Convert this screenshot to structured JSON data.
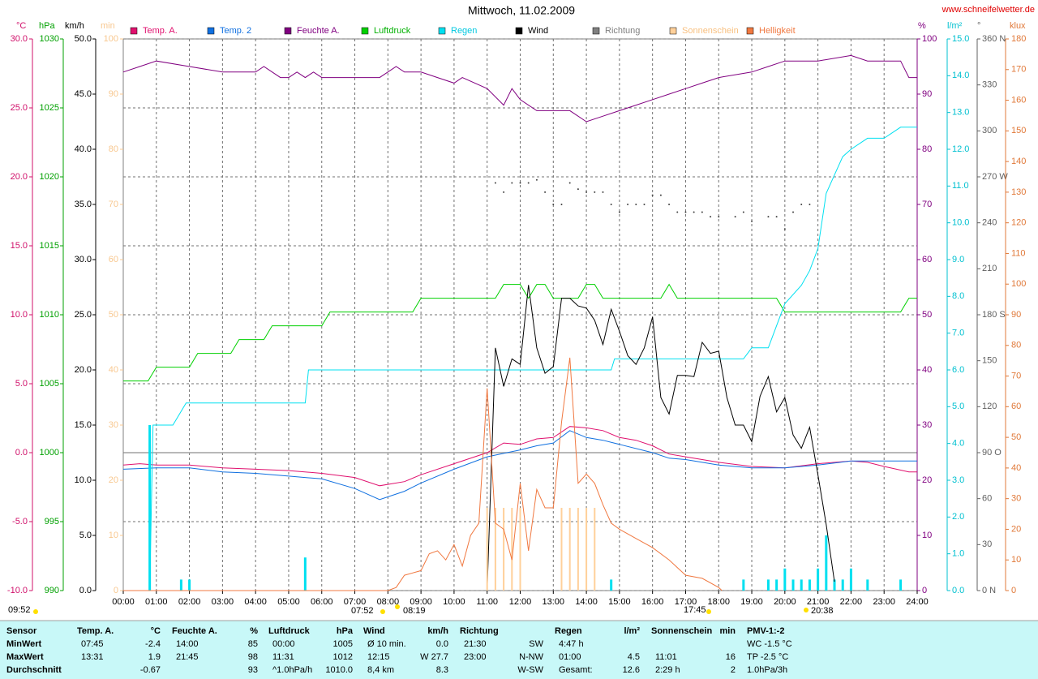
{
  "chart_data": {
    "type": "line",
    "title": "Mittwoch, 11.02.2009",
    "source": "www.schneifelwetter.de",
    "xlim": [
      0,
      24
    ],
    "xticks": [
      {
        "value": 0,
        "label": "00:00"
      },
      {
        "value": 1,
        "label": "01:00"
      },
      {
        "value": 2,
        "label": "02:00"
      },
      {
        "value": 3,
        "label": "03:00"
      },
      {
        "value": 4,
        "label": "04:00"
      },
      {
        "value": 5,
        "label": "05:00"
      },
      {
        "value": 6,
        "label": "06:00"
      },
      {
        "value": 7,
        "label": "07:00"
      },
      {
        "value": 8,
        "label": "08:00"
      },
      {
        "value": 9,
        "label": "09:00"
      },
      {
        "value": 10,
        "label": "10:00"
      },
      {
        "value": 11,
        "label": "11:00"
      },
      {
        "value": 12,
        "label": "12:00"
      },
      {
        "value": 13,
        "label": "13:00"
      },
      {
        "value": 14,
        "label": "14:00"
      },
      {
        "value": 15,
        "label": "15:00"
      },
      {
        "value": 16,
        "label": "16:00"
      },
      {
        "value": 17,
        "label": "17:00"
      },
      {
        "value": 18,
        "label": "18:00"
      },
      {
        "value": 19,
        "label": "19:00"
      },
      {
        "value": 20,
        "label": "20:00"
      },
      {
        "value": 21,
        "label": "21:00"
      },
      {
        "value": 22,
        "label": "22:00"
      },
      {
        "value": 23,
        "label": "23:00"
      },
      {
        "value": 24,
        "label": "24:00"
      }
    ],
    "grid": true,
    "grid_axis": 0,
    "axes": [
      {
        "label": "°C",
        "color": "#d0106a",
        "lim": [
          -10,
          30
        ],
        "baseline": 0,
        "ticks": [
          {
            "value": -10,
            "label": "-10.0"
          },
          {
            "value": -5,
            "label": "-5.0"
          },
          {
            "value": 0,
            "label": "0.0"
          },
          {
            "value": 5,
            "label": "5.0"
          },
          {
            "value": 10,
            "label": "10.0"
          },
          {
            "value": 15,
            "label": "15.0"
          },
          {
            "value": 20,
            "label": "20.0"
          },
          {
            "value": 25,
            "label": "25.0"
          },
          {
            "value": 30,
            "label": "30.0"
          }
        ]
      },
      {
        "label": "hPa",
        "color": "#00a000",
        "lim": [
          990,
          1030
        ],
        "ticks": [
          990,
          995,
          1000,
          1005,
          1010,
          1015,
          1020,
          1025,
          1030
        ]
      },
      {
        "label": "km/h",
        "color": "#000000",
        "lim": [
          0,
          50
        ],
        "ticks": [
          {
            "value": 0,
            "label": "0.0"
          },
          {
            "value": 5,
            "label": "5.0"
          },
          {
            "value": 10,
            "label": "10.0"
          },
          {
            "value": 15,
            "label": "15.0"
          },
          {
            "value": 20,
            "label": "20.0"
          },
          {
            "value": 25,
            "label": "25.0"
          },
          {
            "value": 30,
            "label": "30.0"
          },
          {
            "value": 35,
            "label": "35.0"
          },
          {
            "value": 40,
            "label": "40.0"
          },
          {
            "value": 45,
            "label": "45.0"
          },
          {
            "value": 50,
            "label": "50.0"
          }
        ]
      },
      {
        "label": "min",
        "color": "#f8c890",
        "lim": [
          0,
          100
        ],
        "ticks": [
          0,
          10,
          20,
          30,
          40,
          50,
          60,
          70,
          80,
          90,
          100
        ]
      },
      {
        "label": "%",
        "color": "#800080",
        "lim": [
          0,
          100
        ],
        "ticks": [
          0,
          10,
          20,
          30,
          40,
          50,
          60,
          70,
          80,
          90,
          100
        ]
      },
      {
        "label": "l/m²",
        "color": "#00c0d0",
        "lim": [
          0,
          15
        ],
        "ticks": [
          {
            "value": 0,
            "label": "0.0"
          },
          {
            "value": 1,
            "label": "1.0"
          },
          {
            "value": 2,
            "label": "2.0"
          },
          {
            "value": 3,
            "label": "3.0"
          },
          {
            "value": 4,
            "label": "4.0"
          },
          {
            "value": 5,
            "label": "5.0"
          },
          {
            "value": 6,
            "label": "6.0"
          },
          {
            "value": 7,
            "label": "7.0"
          },
          {
            "value": 8,
            "label": "8.0"
          },
          {
            "value": 9,
            "label": "9.0"
          },
          {
            "value": 10,
            "label": "10.0"
          },
          {
            "value": 11,
            "label": "11.0"
          },
          {
            "value": 12,
            "label": "12.0"
          },
          {
            "value": 13,
            "label": "13.0"
          },
          {
            "value": 14,
            "label": "14.0"
          },
          {
            "value": 15,
            "label": "15.0"
          }
        ]
      },
      {
        "label": "°",
        "color": "#606060",
        "lim": [
          0,
          360
        ],
        "ticks": [
          {
            "value": 0,
            "label": "0  N"
          },
          30,
          60,
          {
            "value": 90,
            "label": "90  O"
          },
          120,
          150,
          {
            "value": 180,
            "label": "180 S"
          },
          210,
          240,
          {
            "value": 270,
            "label": "270 W"
          },
          300,
          330,
          {
            "value": 360,
            "label": "360 N"
          }
        ]
      },
      {
        "label": "klux",
        "color": "#e07838",
        "lim": [
          0,
          180
        ],
        "ticks": [
          0,
          10,
          20,
          30,
          40,
          50,
          60,
          70,
          80,
          90,
          100,
          110,
          120,
          130,
          140,
          150,
          160,
          170,
          180
        ]
      }
    ],
    "series": [
      {
        "name": "Temp. A.",
        "color": "#e0106e",
        "axis": 0,
        "mark": "line",
        "x": [
          0,
          0.5,
          1,
          2,
          3,
          4,
          5,
          6,
          7,
          7.75,
          8.5,
          9,
          10,
          11,
          11.5,
          12,
          12.5,
          13,
          13.5,
          14,
          14.5,
          15,
          15.5,
          16,
          16.5,
          17,
          18,
          19,
          20,
          21,
          22,
          22.5,
          23,
          23.75,
          24
        ],
        "values": [
          -0.9,
          -0.8,
          -0.9,
          -0.9,
          -1.1,
          -1.2,
          -1.3,
          -1.5,
          -1.8,
          -2.4,
          -2.1,
          -1.6,
          -0.8,
          0,
          0.7,
          0.6,
          1.0,
          1.1,
          1.9,
          1.8,
          1.6,
          1.1,
          0.9,
          0.5,
          -0.1,
          -0.3,
          -0.7,
          -1.0,
          -1.1,
          -0.8,
          -0.6,
          -0.7,
          -1.0,
          -1.4,
          -1.4
        ]
      },
      {
        "name": "Temp. 2",
        "color": "#1070e0",
        "axis": 0,
        "mark": "line",
        "x": [
          0,
          1,
          2,
          3,
          4,
          5,
          6,
          7,
          7.75,
          8.5,
          9,
          10,
          11,
          12,
          12.5,
          13,
          13.5,
          14,
          14.5,
          15,
          16,
          16.5,
          17,
          18,
          19,
          20,
          21,
          22,
          23,
          23.75,
          24
        ],
        "values": [
          -1.2,
          -1.1,
          -1.1,
          -1.4,
          -1.5,
          -1.7,
          -1.9,
          -2.6,
          -3.4,
          -2.8,
          -2.2,
          -1.2,
          -0.3,
          0.2,
          0.5,
          0.7,
          1.6,
          1.1,
          0.9,
          0.6,
          0.0,
          -0.4,
          -0.5,
          -0.9,
          -1.1,
          -1.1,
          -0.9,
          -0.6,
          -0.6,
          -0.6,
          -0.6
        ]
      },
      {
        "name": "Feuchte A.",
        "color": "#800080",
        "axis": 4,
        "mark": "line",
        "x": [
          0,
          0.5,
          1,
          2,
          3,
          4,
          4.25,
          4.75,
          5,
          5.25,
          5.5,
          5.75,
          6,
          7.75,
          8.25,
          8.5,
          9,
          9.5,
          10,
          10.25,
          11,
          11.5,
          11.75,
          12,
          12.5,
          13.5,
          14,
          14.5,
          15,
          15.5,
          16,
          16.5,
          17,
          17.5,
          18,
          19,
          19.5,
          20,
          21,
          22,
          22.5,
          23,
          23.5,
          23.75,
          24
        ],
        "values": [
          94,
          95,
          96,
          95,
          94,
          94,
          95,
          93,
          93,
          94,
          93,
          94,
          93,
          93,
          95,
          94,
          94,
          93,
          92,
          93,
          91,
          88,
          91,
          89,
          87,
          87,
          85,
          86,
          87,
          88,
          89,
          90,
          91,
          92,
          93,
          94,
          95,
          96,
          96,
          97,
          96,
          96,
          96,
          93,
          93
        ]
      },
      {
        "name": "Luftdruck",
        "color": "#00d000",
        "axis": 1,
        "mark": "line",
        "x": [
          0,
          0.75,
          1,
          2,
          2.25,
          3.25,
          3.5,
          4.25,
          4.5,
          6,
          6.25,
          8.75,
          9,
          11.25,
          11.5,
          12,
          12.25,
          12.5,
          12.75,
          13,
          13.75,
          14,
          14.25,
          14.5,
          16.25,
          16.5,
          16.75,
          19.75,
          20,
          23.5,
          23.75,
          24
        ],
        "values": [
          1005.2,
          1005.2,
          1006.2,
          1006.2,
          1007.2,
          1007.2,
          1008.2,
          1008.2,
          1009.2,
          1009.2,
          1010.2,
          1010.2,
          1011.2,
          1011.2,
          1012.2,
          1012.2,
          1011.2,
          1012.2,
          1012.2,
          1011.2,
          1011.2,
          1012.2,
          1012.2,
          1011.2,
          1011.2,
          1012.2,
          1011.2,
          1011.2,
          1010.2,
          1010.2,
          1011.2,
          1011.2
        ]
      },
      {
        "name": "Regen",
        "color": "#00e0f0",
        "axis": 5,
        "mark": "line",
        "x": [
          0,
          0.8,
          0.9,
          1.5,
          1.9,
          5.5,
          5.6,
          14.75,
          14.85,
          18.75,
          19,
          19.5,
          19.75,
          20,
          20.5,
          20.75,
          21,
          21.25,
          21.5,
          21.75,
          22,
          22.5,
          23,
          23.5,
          24
        ],
        "values": [
          0,
          0,
          4.5,
          4.5,
          5.1,
          5.1,
          6.0,
          6.0,
          6.3,
          6.3,
          6.6,
          6.6,
          7.2,
          7.8,
          8.3,
          8.7,
          9.3,
          10.8,
          11.3,
          11.8,
          12.0,
          12.3,
          12.3,
          12.6,
          12.6
        ],
        "bar_x": [
          0.8,
          1.75,
          2.0,
          5.5,
          14.75,
          18.75,
          19.5,
          19.75,
          20.0,
          20.25,
          20.5,
          20.75,
          21.0,
          21.25,
          21.5,
          21.75,
          22.0,
          22.5,
          23.5
        ],
        "bar_values": [
          4.5,
          0.3,
          0.3,
          0.9,
          0.3,
          0.3,
          0.3,
          0.3,
          0.6,
          0.3,
          0.3,
          0.3,
          0.6,
          1.5,
          0.3,
          0.3,
          0.6,
          0.3,
          0.3
        ]
      },
      {
        "name": "Wind",
        "color": "#000000",
        "axis": 2,
        "mark": "line",
        "x": [
          11,
          11.25,
          11.5,
          11.75,
          12,
          12.25,
          12.5,
          12.75,
          13,
          13.25,
          13.5,
          13.75,
          14,
          14.25,
          14.5,
          14.75,
          15,
          15.25,
          15.5,
          15.75,
          16,
          16.25,
          16.5,
          16.75,
          17,
          17.25,
          17.5,
          17.75,
          18,
          18.25,
          18.5,
          18.75,
          19,
          19.25,
          19.5,
          19.75,
          20,
          20.25,
          20.5,
          20.75,
          21,
          21.25,
          21.5
        ],
        "values": [
          0,
          22,
          18.5,
          21,
          20.5,
          27.7,
          22,
          19.7,
          20.3,
          26.5,
          26.5,
          25.8,
          25.6,
          24.5,
          22.3,
          25.5,
          23.5,
          21.3,
          20.5,
          22,
          24.8,
          17.5,
          16,
          19.5,
          19.5,
          19.4,
          22.5,
          21.5,
          21.7,
          17.5,
          15,
          15,
          13.5,
          17.6,
          19.4,
          16.2,
          17.5,
          14.1,
          12.9,
          14.8,
          10.5,
          6,
          0.8
        ]
      },
      {
        "name": "Richtung",
        "color": "#808080",
        "axis": 6,
        "mark": "dots",
        "x": [
          11.25,
          11.5,
          11.75,
          12,
          12.25,
          12.5,
          12.75,
          13,
          13.25,
          13.5,
          13.75,
          14,
          14.25,
          14.5,
          14.75,
          15,
          15.25,
          15.5,
          15.75,
          16,
          16.25,
          16.5,
          16.75,
          17,
          17.25,
          17.5,
          17.75,
          18,
          18.5,
          18.75,
          19,
          19.5,
          19.75,
          20,
          20.25,
          20.5,
          20.75
        ],
        "values": [
          266,
          260,
          266,
          266,
          266,
          268,
          260,
          252,
          252,
          266,
          262,
          260,
          260,
          260,
          252,
          247,
          252,
          252,
          252,
          258,
          258,
          252,
          247,
          247,
          247,
          247,
          244,
          244,
          244,
          247,
          241,
          244,
          244,
          236,
          247,
          252,
          252
        ]
      },
      {
        "name": "Sonnenschein",
        "color": "#ffd09a",
        "axis": 3,
        "mark": "bars",
        "x": [
          11.0,
          11.25,
          11.5,
          11.75,
          12.0,
          13.25,
          13.5,
          13.75,
          14.0,
          14.25
        ],
        "values": [
          15,
          15,
          15,
          15,
          15,
          15,
          15,
          15,
          15,
          15
        ]
      },
      {
        "name": "Helligkeit",
        "color": "#f07840",
        "axis": 7,
        "mark": "line",
        "x": [
          0,
          8,
          8.25,
          8.5,
          9,
          9.25,
          9.5,
          9.75,
          10,
          10.25,
          10.5,
          10.75,
          11,
          11.25,
          11.5,
          11.75,
          12,
          12.25,
          12.5,
          12.75,
          13,
          13.25,
          13.5,
          13.75,
          14,
          14.25,
          14.5,
          14.75,
          15,
          15.5,
          16,
          16.5,
          17,
          17.5,
          18,
          18.1
        ],
        "values": [
          0,
          0,
          1,
          5,
          6.5,
          12,
          13,
          10,
          15,
          8,
          18,
          22,
          66,
          22,
          20,
          10,
          35,
          13,
          33,
          27,
          27,
          55,
          76,
          35,
          38,
          35,
          28,
          22,
          20,
          17,
          14,
          10,
          5,
          4,
          1,
          0
        ]
      }
    ],
    "sun_times": [
      "09:52",
      "07:52",
      "08:19",
      "17:45",
      "20:38"
    ]
  },
  "table": {
    "columns": [
      {
        "name": "Sensor"
      },
      {
        "name": "Temp. A.",
        "unit": "°C"
      },
      {
        "name": "Feuchte A.",
        "unit": "%"
      },
      {
        "name": "Luftdruck",
        "unit": "hPa"
      },
      {
        "name": "Wind",
        "unit": "km/h"
      },
      {
        "name": "Richtung"
      },
      {
        "name": "Regen",
        "unit": "l/m²"
      },
      {
        "name": "Sonnenschein",
        "unit": "min"
      },
      {
        "name": "PMV-1:-2"
      }
    ],
    "rows": [
      {
        "label": "MinWert",
        "cells": [
          "07:45",
          "-2.4",
          "14:00",
          "85",
          "00:00",
          "1005",
          "Ø 10 min.",
          "0.0",
          "21:30",
          "SW",
          "4:47 h",
          null,
          null,
          null,
          "WC -1.5 °C"
        ]
      },
      {
        "label": "MaxWert",
        "cells": [
          "13:31",
          "1.9",
          "21:45",
          "98",
          "11:31",
          "1012",
          "12:15",
          "W 27.7",
          "23:00",
          "N-NW",
          "01:00",
          "4.5",
          "11:01",
          "16",
          "TP -2.5 °C"
        ]
      },
      {
        "label": "Durchschnitt",
        "cells": [
          null,
          "-0.67",
          null,
          "93",
          "^1.0hPa/h",
          "1010.0",
          "8,4 km",
          "8.3",
          null,
          "W-SW",
          "Gesamt:",
          "12.6",
          "2:29 h",
          "2",
          "1.0hPa/3h"
        ]
      }
    ]
  }
}
